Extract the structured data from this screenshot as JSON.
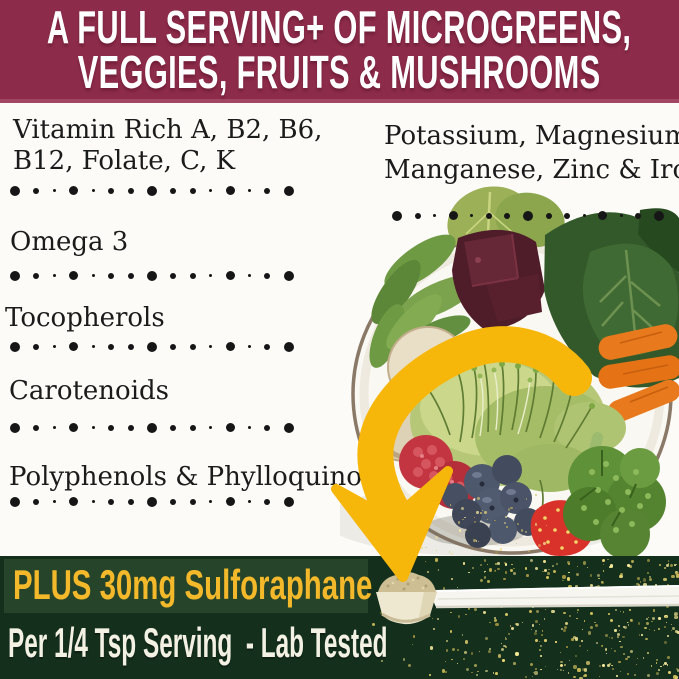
{
  "banner": {
    "line1": "A FULL SERVING+ OF MICROGREENS,",
    "line2": "VEGGIES, FRUITS & MUSHROOMS"
  },
  "nutrients_left": [
    {
      "lines": [
        "Vitamin Rich A, B2, B6,",
        "B12, Folate, C, K"
      ]
    },
    {
      "lines": [
        "Omega 3"
      ]
    },
    {
      "lines": [
        "Tocopherols"
      ]
    },
    {
      "lines": [
        "Carotenoids"
      ]
    },
    {
      "lines": [
        "Polyphenols & Phylloquinone"
      ]
    }
  ],
  "nutrients_right": [
    {
      "lines": [
        "Potassium, Magnesium,",
        "Manganese, Zinc & Iron"
      ]
    }
  ],
  "bottom_band": {
    "highlight": "PLUS 30mg Sulforaphane",
    "detail": "Per 1/4 Tsp Serving  - Lab Tested"
  },
  "images": {
    "bowl": "bowl with kale, arugula, beets, carrots, mushrooms, microgreens, broccoli, blueberries, raspberries and a strawberry",
    "arrow_icon": "curved-down-arrow",
    "spoon": "measuring scoop filled with powder",
    "glitter": "gold glitter speckles"
  },
  "colors": {
    "banner_bg": "#8D2C4A",
    "banner_text": "#FFFFFF",
    "body_text": "#1B1B1B",
    "band_bg": "#14301D",
    "band_box_bg": "#264429",
    "gold_text": "#F4B92A",
    "detail_text": "#F3F1E4",
    "arrow": "#F7B60A"
  }
}
